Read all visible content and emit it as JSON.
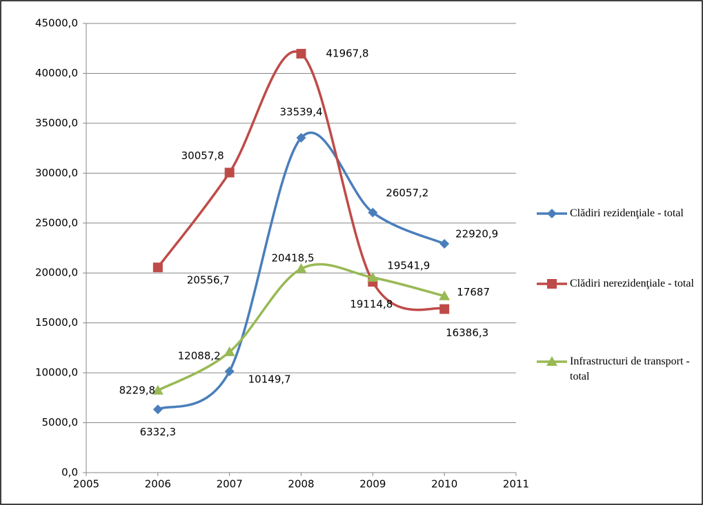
{
  "chart_data": {
    "type": "line",
    "x": [
      2006,
      2007,
      2008,
      2009,
      2010
    ],
    "xlim": [
      2005,
      2011
    ],
    "xticks": [
      2005,
      2006,
      2007,
      2008,
      2009,
      2010,
      2011
    ],
    "ylim": [
      0,
      45000
    ],
    "yticks": [
      {
        "value": 0,
        "label": "0,0"
      },
      {
        "value": 5000,
        "label": "5000,0"
      },
      {
        "value": 10000,
        "label": "10000,0"
      },
      {
        "value": 15000,
        "label": "15000,0"
      },
      {
        "value": 20000,
        "label": "20000,0"
      },
      {
        "value": 25000,
        "label": "25000,0"
      },
      {
        "value": 30000,
        "label": "30000,0"
      },
      {
        "value": 35000,
        "label": "35000,0"
      },
      {
        "value": 40000,
        "label": "40000,0"
      },
      {
        "value": 45000,
        "label": "45000,0"
      }
    ],
    "grid": true,
    "smooth": true,
    "legend": "right",
    "series": [
      {
        "name": "Clădiri rezidenţiale - total",
        "color": "#4a7ebb",
        "marker": "diamond",
        "values": [
          6332.3,
          10149.7,
          33539.4,
          26057.2,
          22920.9
        ],
        "value_labels": [
          "6332,3",
          "10149,7",
          "33539,4",
          "26057,2",
          "22920,9"
        ]
      },
      {
        "name": "Clădiri nerezidenţiale - total",
        "color": "#be4b48",
        "marker": "square",
        "values": [
          20556.7,
          30057.8,
          41967.8,
          19114.8,
          16386.3
        ],
        "value_labels": [
          "20556,7",
          "30057,8",
          "41967,8",
          "19114,8",
          "16386,3"
        ]
      },
      {
        "name": "Infrastructuri de transport - total",
        "color": "#98b954",
        "marker": "triangle",
        "values": [
          8229.8,
          12088.2,
          20418.5,
          19541.9,
          17687
        ],
        "value_labels": [
          "8229,8",
          "12088,2",
          "20418,5",
          "19541,9",
          "17687"
        ]
      }
    ]
  }
}
